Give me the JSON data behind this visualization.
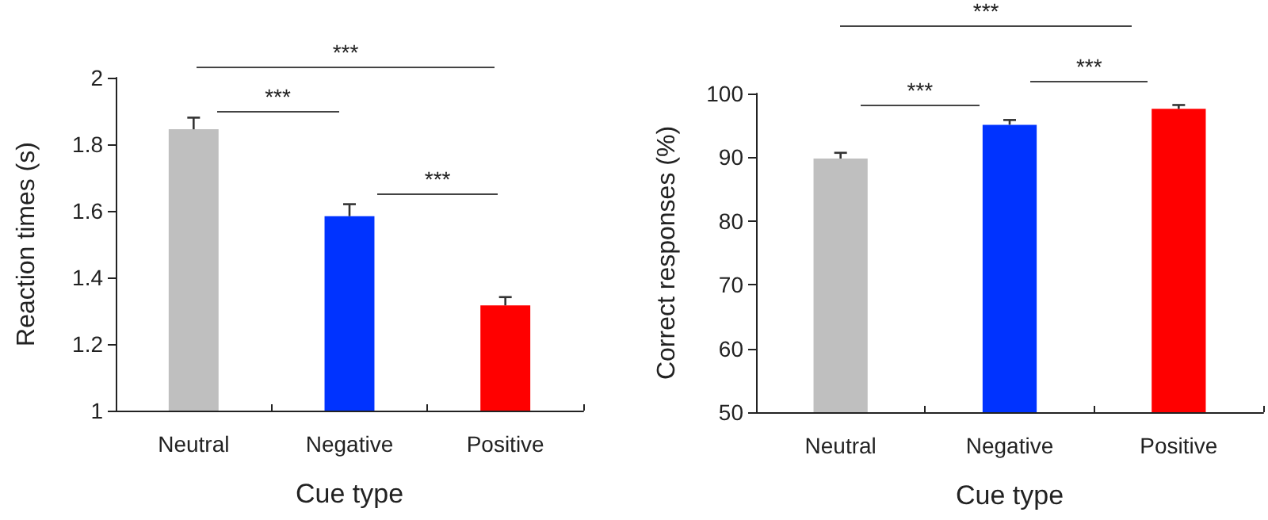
{
  "chart_data": [
    {
      "type": "bar",
      "categories": [
        "Neutral",
        "Negative",
        "Positive"
      ],
      "xlabel": "Cue type",
      "ylabel": "Reaction times (s)",
      "values": [
        1.845,
        1.584,
        1.316
      ],
      "errors": [
        0.035,
        0.036,
        0.025
      ],
      "colors": [
        "#bfbfbf",
        "#0033ff",
        "#ff0000"
      ],
      "ylim": [
        1,
        2
      ],
      "yticks": [
        1,
        1.2,
        1.4,
        1.6,
        1.8,
        2
      ],
      "grid": false,
      "annotations": [
        "***",
        "***",
        "***"
      ]
    },
    {
      "type": "bar",
      "categories": [
        "Neutral",
        "Negative",
        "Positive"
      ],
      "xlabel": "Cue type",
      "ylabel": "Correct responses (%)",
      "values": [
        89.8,
        95.1,
        97.6
      ],
      "errors": [
        0.9,
        0.75,
        0.6
      ],
      "colors": [
        "#bfbfbf",
        "#0033ff",
        "#ff0000"
      ],
      "ylim": [
        50,
        100
      ],
      "yticks": [
        50,
        60,
        70,
        80,
        90,
        100
      ],
      "grid": false,
      "annotations": [
        "***",
        "***",
        "***"
      ]
    }
  ]
}
